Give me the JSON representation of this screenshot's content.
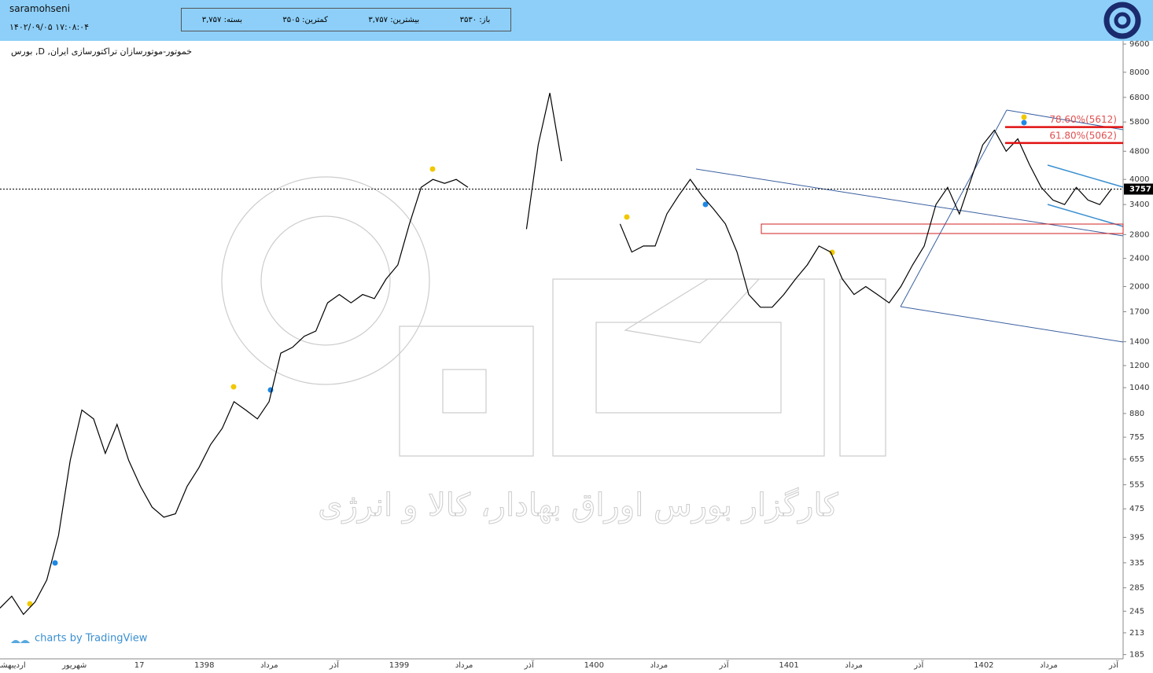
{
  "header": {
    "user": "saramohseni",
    "datetime": "۱۴۰۲/۰۹/۰۵ ۱۷:۰۸:۰۴",
    "fields": [
      {
        "label": "باز:",
        "value": "۳۵۳۰"
      },
      {
        "label": "بیشترین:",
        "value": "۳,۷۵۷"
      },
      {
        "label": "کمترین:",
        "value": "۳۵۰۵"
      },
      {
        "label": "بسته:",
        "value": "۳,۷۵۷"
      }
    ]
  },
  "chart_data": {
    "type": "line",
    "title": "بورس ,D ,خموتور-موتورسازان تراکتورسازی ایران",
    "watermark": "کارگزار بورس اوراق بهادار، کالا و انرژی",
    "credit": "charts by TradingView",
    "log_scale": true,
    "color": "#000000",
    "ylim": [
      180,
      9800
    ],
    "yticks": [
      9600,
      8000,
      6800,
      5800,
      4800,
      4000,
      3400,
      2800,
      2400,
      2000,
      1700,
      1400,
      1200,
      1040,
      880,
      755,
      655,
      555,
      475,
      395,
      335,
      285,
      245,
      213,
      185
    ],
    "x_labels": [
      "اردیبهشت",
      "شهریور",
      "17",
      "1398",
      "مرداد",
      "آذر",
      "1399",
      "مرداد",
      "آذر",
      "1400",
      "مرداد",
      "آذر",
      "1401",
      "مرداد",
      "آذر",
      "1402",
      "مرداد",
      "آذر"
    ],
    "last_price": 3757,
    "fib_levels": [
      {
        "label": "78.60%(5612)",
        "value": 5612
      },
      {
        "label": "61.80%(5062)",
        "value": 5062
      }
    ],
    "values": [
      250,
      270,
      240,
      260,
      300,
      400,
      650,
      900,
      850,
      680,
      820,
      650,
      550,
      480,
      450,
      460,
      550,
      620,
      720,
      800,
      950,
      900,
      850,
      950,
      1300,
      1350,
      1450,
      1500,
      1800,
      1900,
      1800,
      1900,
      1850,
      2100,
      2300,
      3000,
      3800,
      4000,
      3900,
      4000,
      3800,
      null,
      null,
      null,
      null,
      2900,
      5000,
      7000,
      4500,
      null,
      null,
      null,
      null,
      3000,
      2500,
      2600,
      2600,
      3200,
      3600,
      4000,
      3600,
      3300,
      3000,
      2500,
      1900,
      1750,
      1750,
      1900,
      2100,
      2300,
      2600,
      2500,
      2100,
      1900,
      2000,
      1900,
      1800,
      2000,
      2300,
      2600,
      3400,
      3800,
      3200,
      4000,
      5000,
      5500,
      4800,
      5200,
      4400,
      3800,
      3500,
      3400,
      3800,
      3500,
      3400,
      3757
    ]
  }
}
